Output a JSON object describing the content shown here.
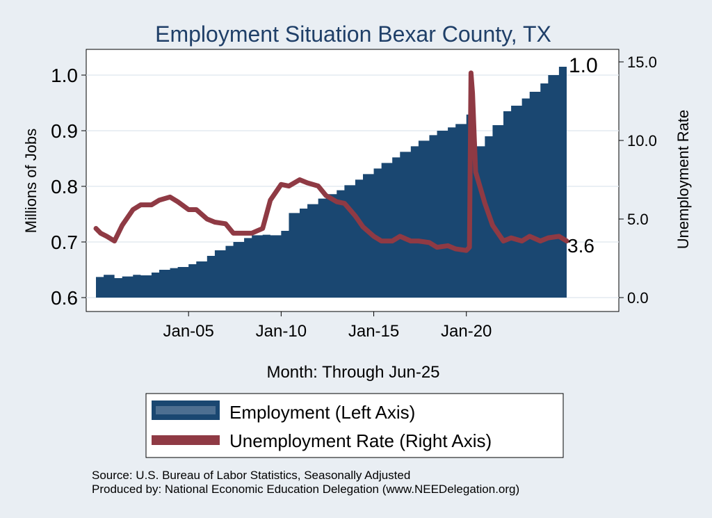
{
  "chart_data": {
    "type": "area+line",
    "title": "Employment Situation Bexar  County, TX",
    "xlabel": "Month: Through Jun-25",
    "ylabel_left": "Millions of Jobs",
    "ylabel_right": "Unemployment Rate",
    "x_ticks": [
      "Jan-05",
      "Jan-10",
      "Jan-15",
      "Jan-20"
    ],
    "y_left_ticks": [
      "0.6",
      "0.7",
      "0.8",
      "0.9",
      "1.0"
    ],
    "y_right_ticks": [
      "0.0",
      "5.0",
      "10.0",
      "15.0"
    ],
    "y_left_range": [
      0.6,
      1.0
    ],
    "y_right_range": [
      0.0,
      15.0
    ],
    "x_range": [
      "2000-01",
      "2025-06"
    ],
    "grid": "horizontal",
    "legend_position": "bottom",
    "end_labels": {
      "employment": "1.0",
      "unemployment": "3.6"
    },
    "series": [
      {
        "name": "Employment (Left Axis)",
        "axis": "left",
        "color": "#1a4771",
        "x": [
          "2000-01",
          "2000-06",
          "2001-01",
          "2001-06",
          "2002-01",
          "2002-06",
          "2003-01",
          "2003-06",
          "2004-01",
          "2004-06",
          "2005-01",
          "2005-06",
          "2006-01",
          "2006-06",
          "2007-01",
          "2007-06",
          "2008-01",
          "2008-06",
          "2009-01",
          "2009-06",
          "2010-01",
          "2010-06",
          "2011-01",
          "2011-06",
          "2012-01",
          "2012-06",
          "2013-01",
          "2013-06",
          "2014-01",
          "2014-06",
          "2015-01",
          "2015-06",
          "2016-01",
          "2016-06",
          "2017-01",
          "2017-06",
          "2018-01",
          "2018-06",
          "2019-01",
          "2019-06",
          "2020-01",
          "2020-03",
          "2020-04",
          "2020-06",
          "2021-01",
          "2021-06",
          "2022-01",
          "2022-06",
          "2023-01",
          "2023-06",
          "2024-01",
          "2024-06",
          "2025-01",
          "2025-06"
        ],
        "values": [
          0.637,
          0.641,
          0.635,
          0.638,
          0.641,
          0.64,
          0.645,
          0.65,
          0.653,
          0.655,
          0.66,
          0.665,
          0.675,
          0.685,
          0.693,
          0.7,
          0.707,
          0.712,
          0.713,
          0.712,
          0.72,
          0.752,
          0.76,
          0.768,
          0.778,
          0.786,
          0.793,
          0.802,
          0.812,
          0.822,
          0.832,
          0.842,
          0.852,
          0.862,
          0.872,
          0.882,
          0.892,
          0.9,
          0.906,
          0.912,
          0.929,
          0.929,
          0.86,
          0.872,
          0.89,
          0.91,
          0.935,
          0.945,
          0.958,
          0.97,
          0.985,
          1.0,
          1.015,
          1.025
        ]
      },
      {
        "name": "Unemployment Rate (Right Axis)",
        "axis": "right",
        "color": "#8f3a44",
        "x": [
          "2000-01",
          "2000-04",
          "2000-08",
          "2001-01",
          "2001-06",
          "2002-01",
          "2002-06",
          "2003-01",
          "2003-06",
          "2004-01",
          "2004-06",
          "2005-01",
          "2005-06",
          "2006-01",
          "2006-06",
          "2007-01",
          "2007-06",
          "2008-01",
          "2008-06",
          "2009-01",
          "2009-06",
          "2010-01",
          "2010-06",
          "2011-01",
          "2011-06",
          "2012-01",
          "2012-06",
          "2013-01",
          "2013-06",
          "2014-01",
          "2014-06",
          "2015-01",
          "2015-06",
          "2016-01",
          "2016-06",
          "2017-01",
          "2017-06",
          "2018-01",
          "2018-06",
          "2019-01",
          "2019-06",
          "2020-01",
          "2020-03",
          "2020-04",
          "2020-05",
          "2020-07",
          "2020-10",
          "2021-01",
          "2021-06",
          "2022-01",
          "2022-06",
          "2023-01",
          "2023-06",
          "2024-01",
          "2024-06",
          "2025-01",
          "2025-06"
        ],
        "values": [
          4.4,
          4.1,
          3.9,
          3.6,
          4.6,
          5.6,
          5.9,
          5.9,
          6.2,
          6.4,
          6.1,
          5.6,
          5.6,
          5.0,
          4.8,
          4.7,
          4.1,
          4.1,
          4.1,
          4.4,
          6.2,
          7.2,
          7.1,
          7.5,
          7.3,
          7.1,
          6.5,
          6.1,
          6.0,
          5.2,
          4.5,
          3.9,
          3.6,
          3.6,
          3.9,
          3.6,
          3.6,
          3.5,
          3.2,
          3.3,
          3.1,
          3.0,
          3.2,
          14.3,
          13.0,
          8.0,
          7.0,
          6.0,
          4.6,
          3.6,
          3.8,
          3.6,
          3.9,
          3.6,
          3.8,
          3.9,
          3.6
        ]
      }
    ]
  },
  "legend": {
    "employment": "Employment (Left Axis)",
    "unemployment": "Unemployment Rate (Right Axis)"
  },
  "footer": {
    "source": "Source: U.S. Bureau of Labor Statistics, Seasonally Adjusted",
    "produced": "Produced by: National Economic Education Delegation (www.NEEDelegation.org)"
  }
}
